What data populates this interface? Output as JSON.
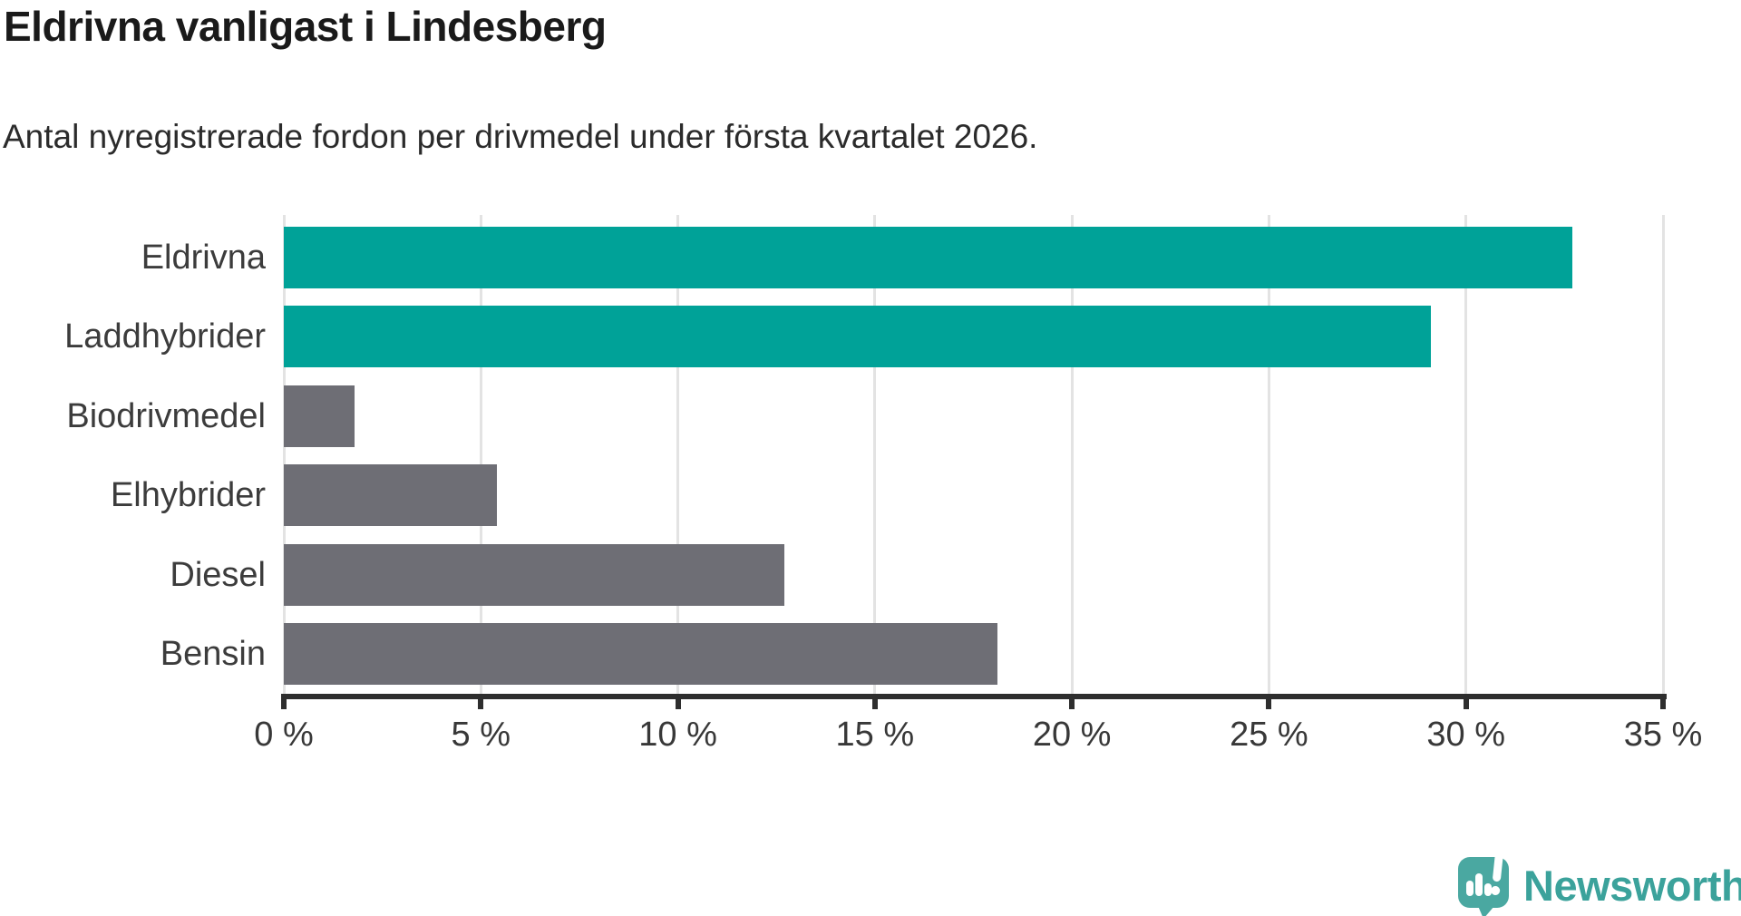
{
  "header": {
    "title": "Eldrivna vanligast i Lindesberg",
    "subtitle": "Antal nyregistrerade fordon per drivmedel under första kvartalet 2026."
  },
  "chart_data": {
    "type": "bar",
    "orientation": "horizontal",
    "title": "Eldrivna vanligast i Lindesberg",
    "subtitle": "Antal nyregistrerade fordon per drivmedel under första kvartalet 2026.",
    "categories": [
      "Eldrivna",
      "Laddhybrider",
      "Biodrivmedel",
      "Elhybrider",
      "Diesel",
      "Bensin"
    ],
    "values": [
      32.7,
      29.1,
      1.8,
      5.4,
      12.7,
      18.1
    ],
    "unit": "%",
    "xlim": [
      0,
      35
    ],
    "x_tick_values": [
      0,
      5,
      10,
      15,
      20,
      25,
      30,
      35
    ],
    "x_tick_labels": [
      "0 %",
      "5 %",
      "10 %",
      "15 %",
      "20 %",
      "25 %",
      "30 %",
      "35 %"
    ],
    "bar_colors": [
      "#00a298",
      "#00a298",
      "#6e6e75",
      "#6e6e75",
      "#6e6e75",
      "#6e6e75"
    ],
    "highlight_color": "#00a298",
    "default_color": "#6e6e75",
    "grid": true,
    "gridline_color": "#e3e3e3",
    "axis_color": "#2e2e2e",
    "legend": "none"
  },
  "footer": {
    "brand": "Newsworthy",
    "brand_color": "#3ba29b",
    "logo_icon": "newsworthy-speech-bubble-bar-chart-icon",
    "logo_bubble_color": "#4aa8a1",
    "logo_glyph_color": "#ffffff"
  }
}
